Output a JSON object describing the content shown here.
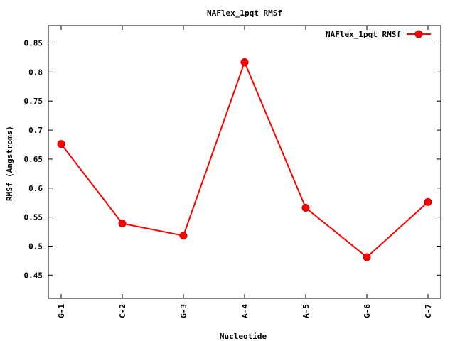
{
  "chart_data": {
    "type": "line",
    "title": "NAFlex_1pqt RMSf",
    "xlabel": "Nucleotide",
    "ylabel": "RMSf (Angstroms)",
    "categories": [
      "G-1",
      "C-2",
      "G-3",
      "A-4",
      "A-5",
      "G-6",
      "C-7"
    ],
    "ylim": [
      0.41,
      0.88
    ],
    "yticks": [
      0.45,
      0.5,
      0.55,
      0.6,
      0.65,
      0.7,
      0.75,
      0.8,
      0.85
    ],
    "ytick_labels": [
      "0.45",
      "0.5",
      "0.55",
      "0.6",
      "0.65",
      "0.7",
      "0.75",
      "0.8",
      "0.85"
    ],
    "grid": false,
    "legend_position": "top-right",
    "series": [
      {
        "name": "NAFlex_1pqt RMSf",
        "color": "#ff0000",
        "marker": "circle",
        "values": [
          0.676,
          0.539,
          0.518,
          0.817,
          0.566,
          0.481,
          0.576
        ]
      }
    ]
  }
}
